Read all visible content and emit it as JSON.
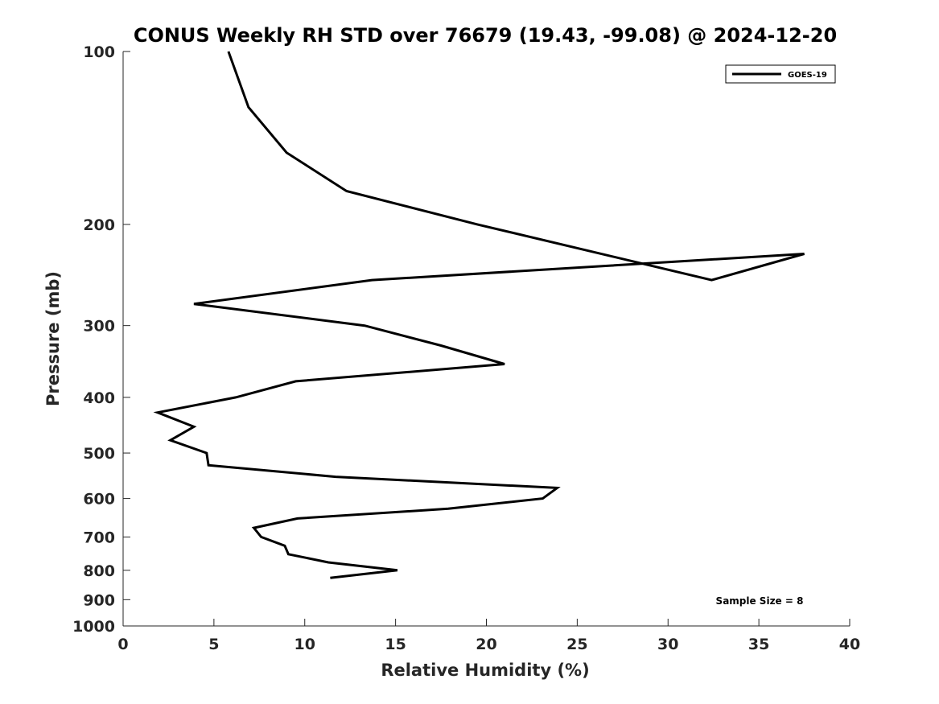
{
  "chart_data": {
    "type": "line",
    "title": "CONUS Weekly RH STD over 76679 (19.43, -99.08) @ 2024-12-20",
    "xlabel": "Relative Humidity (%)",
    "ylabel": "Pressure (mb)",
    "xlim": [
      0,
      40
    ],
    "ylim": [
      100,
      1000
    ],
    "y_scale": "log",
    "y_reversed": true,
    "x_ticks": [
      0,
      5,
      10,
      15,
      20,
      25,
      30,
      35,
      40
    ],
    "y_ticks": [
      100,
      200,
      300,
      400,
      500,
      600,
      700,
      800,
      900,
      1000
    ],
    "grid": false,
    "legend_position": "top-right",
    "annotation": "Sample Size = 8",
    "series": [
      {
        "name": "GOES-19",
        "color": "#000000",
        "points": [
          {
            "x": 5.8,
            "y": 100
          },
          {
            "x": 6.9,
            "y": 125
          },
          {
            "x": 9.0,
            "y": 150
          },
          {
            "x": 12.3,
            "y": 175
          },
          {
            "x": 19.5,
            "y": 200
          },
          {
            "x": 32.4,
            "y": 250
          },
          {
            "x": 37.5,
            "y": 225
          },
          {
            "x": 13.7,
            "y": 250
          },
          {
            "x": 3.9,
            "y": 275
          },
          {
            "x": 13.3,
            "y": 300
          },
          {
            "x": 17.5,
            "y": 325
          },
          {
            "x": 21.0,
            "y": 350
          },
          {
            "x": 9.5,
            "y": 375
          },
          {
            "x": 6.2,
            "y": 400
          },
          {
            "x": 1.9,
            "y": 425
          },
          {
            "x": 3.9,
            "y": 450
          },
          {
            "x": 2.6,
            "y": 475
          },
          {
            "x": 4.6,
            "y": 500
          },
          {
            "x": 4.7,
            "y": 525
          },
          {
            "x": 11.7,
            "y": 550
          },
          {
            "x": 23.9,
            "y": 575
          },
          {
            "x": 23.1,
            "y": 600
          },
          {
            "x": 17.9,
            "y": 625
          },
          {
            "x": 9.6,
            "y": 650
          },
          {
            "x": 7.2,
            "y": 675
          },
          {
            "x": 7.6,
            "y": 700
          },
          {
            "x": 8.9,
            "y": 725
          },
          {
            "x": 9.1,
            "y": 750
          },
          {
            "x": 11.3,
            "y": 775
          },
          {
            "x": 15.1,
            "y": 800
          },
          {
            "x": 11.4,
            "y": 825
          }
        ]
      }
    ]
  }
}
